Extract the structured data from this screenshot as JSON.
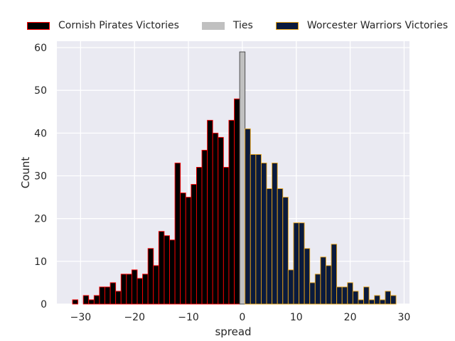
{
  "chart_data": {
    "type": "bar",
    "xlabel": "spread",
    "ylabel": "Count",
    "xlim": [
      -34.4,
      31.0
    ],
    "ylim": [
      0,
      61.5
    ],
    "x_ticks": [
      "−30",
      "−20",
      "−10",
      "0",
      "10",
      "20",
      "30"
    ],
    "y_ticks": [
      "0",
      "10",
      "20",
      "30",
      "40",
      "50",
      "60"
    ],
    "grid": true,
    "legend_position": "top",
    "bin_width": 1,
    "series": [
      {
        "name": "Cornish Pirates Victories",
        "fill": "#000000",
        "edge": "#ff0000",
        "x": [
          -32,
          -31,
          -30,
          -29,
          -28,
          -27,
          -26,
          -25,
          -24,
          -23,
          -22,
          -21,
          -20,
          -19,
          -18,
          -17,
          -16,
          -15,
          -14,
          -13,
          -12,
          -11,
          -10,
          -9,
          -8,
          -7,
          -6,
          -5,
          -4,
          -3,
          -2,
          -1
        ],
        "values": [
          0,
          1,
          0,
          2,
          1,
          2,
          4,
          4,
          5,
          3,
          7,
          7,
          8,
          6,
          7,
          13,
          9,
          17,
          16,
          15,
          33,
          26,
          25,
          28,
          32,
          36,
          43,
          40,
          39,
          32,
          43,
          48
        ]
      },
      {
        "name": "Ties",
        "fill": "#c0c0c0",
        "edge": "#404040",
        "x": [
          0
        ],
        "values": [
          59
        ]
      },
      {
        "name": "Worcester Warriors Victories",
        "fill": "#0a1a3c",
        "edge": "#e8a317",
        "x": [
          1,
          2,
          3,
          4,
          5,
          6,
          7,
          8,
          9,
          10,
          11,
          12,
          13,
          14,
          15,
          16,
          17,
          18,
          19,
          20,
          21,
          22,
          23,
          24,
          25,
          26,
          27,
          28
        ],
        "values": [
          41,
          35,
          35,
          33,
          27,
          33,
          27,
          25,
          8,
          19,
          19,
          13,
          5,
          7,
          11,
          9,
          14,
          4,
          4,
          5,
          3,
          1,
          4,
          1,
          2,
          1,
          3,
          2
        ]
      }
    ]
  }
}
